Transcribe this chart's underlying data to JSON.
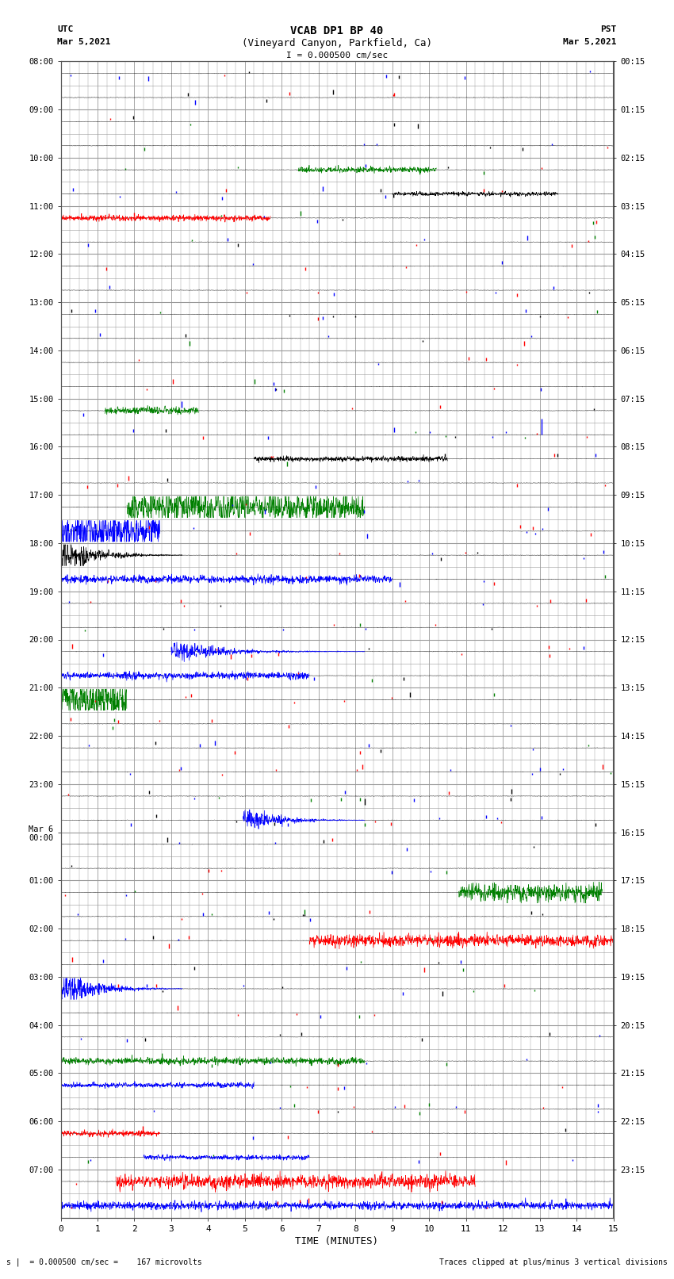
{
  "title_line1": "VCAB DP1 BP 40",
  "title_line2": "(Vineyard Canyon, Parkfield, Ca)",
  "scale_label": "I = 0.000500 cm/sec",
  "utc_label": "UTC",
  "utc_date": "Mar 5,2021",
  "pst_label": "PST",
  "pst_date": "Mar 5,2021",
  "footer_left": "s |  = 0.000500 cm/sec =    167 microvolts",
  "footer_right": "Traces clipped at plus/minus 3 vertical divisions",
  "xlabel": "TIME (MINUTES)",
  "left_times_utc": [
    "08:00",
    "09:00",
    "10:00",
    "11:00",
    "12:00",
    "13:00",
    "14:00",
    "15:00",
    "16:00",
    "17:00",
    "18:00",
    "19:00",
    "20:00",
    "21:00",
    "22:00",
    "23:00",
    "Mar 6\n00:00",
    "01:00",
    "02:00",
    "03:00",
    "04:00",
    "05:00",
    "06:00",
    "07:00"
  ],
  "right_times_pst": [
    "00:15",
    "01:15",
    "02:15",
    "03:15",
    "04:15",
    "05:15",
    "06:15",
    "07:15",
    "08:15",
    "09:15",
    "10:15",
    "11:15",
    "12:15",
    "13:15",
    "14:15",
    "15:15",
    "16:15",
    "17:15",
    "18:15",
    "19:15",
    "20:15",
    "21:15",
    "22:15",
    "23:15"
  ],
  "n_rows": 48,
  "n_cols": 15,
  "bg_color": "#ffffff",
  "grid_color": "#999999",
  "fig_width": 8.5,
  "fig_height": 16.13
}
